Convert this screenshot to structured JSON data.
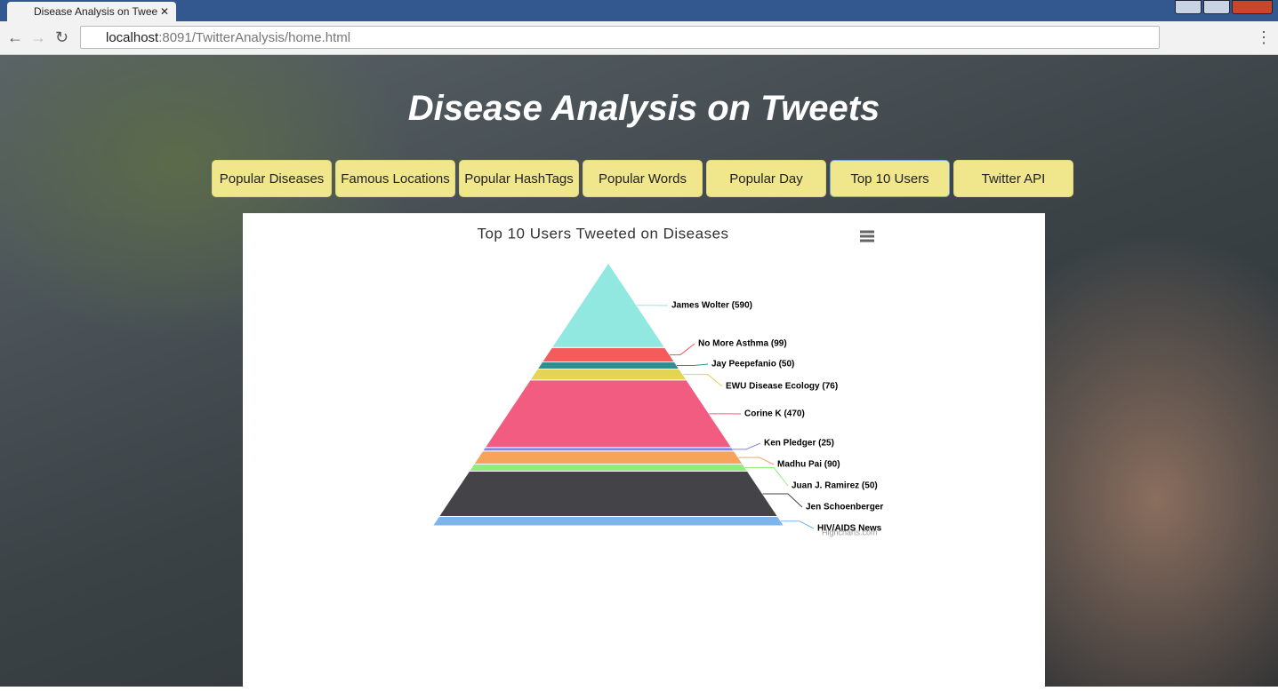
{
  "browser": {
    "tab_title": "Disease Analysis on Twee",
    "url_host": "localhost",
    "url_rest": ":8091/TwitterAnalysis/home.html"
  },
  "header": {
    "title": "Disease Analysis on Tweets"
  },
  "nav": {
    "buttons": [
      "Popular Diseases",
      "Famous Locations",
      "Popular HashTags",
      "Popular Words",
      "Popular Day",
      "Top 10 Users",
      "Twitter API"
    ]
  },
  "chart_data": {
    "type": "pyramid",
    "title": "Top 10 Users Tweeted on Diseases",
    "categories": [
      "James Wolter (590)",
      "No More Asthma (99)",
      "Jay Peepefanio (50)",
      "EWU Disease Ecology (76)",
      "Corine K (470)",
      "Ken Pledger (25)",
      "Madhu Pai (90)",
      "Juan J. Ramirez (50)",
      "Jen Schoenberger",
      "HIV/AIDS News"
    ],
    "values": [
      590,
      99,
      50,
      76,
      470,
      25,
      90,
      50,
      315,
      65
    ],
    "colors": [
      "#90e8e0",
      "#f45b5b",
      "#2b908f",
      "#e4d354",
      "#f15c80",
      "#8085e9",
      "#f7a35c",
      "#90ed7d",
      "#434348",
      "#7cb5ec"
    ],
    "credits": "Highcharts.com"
  }
}
